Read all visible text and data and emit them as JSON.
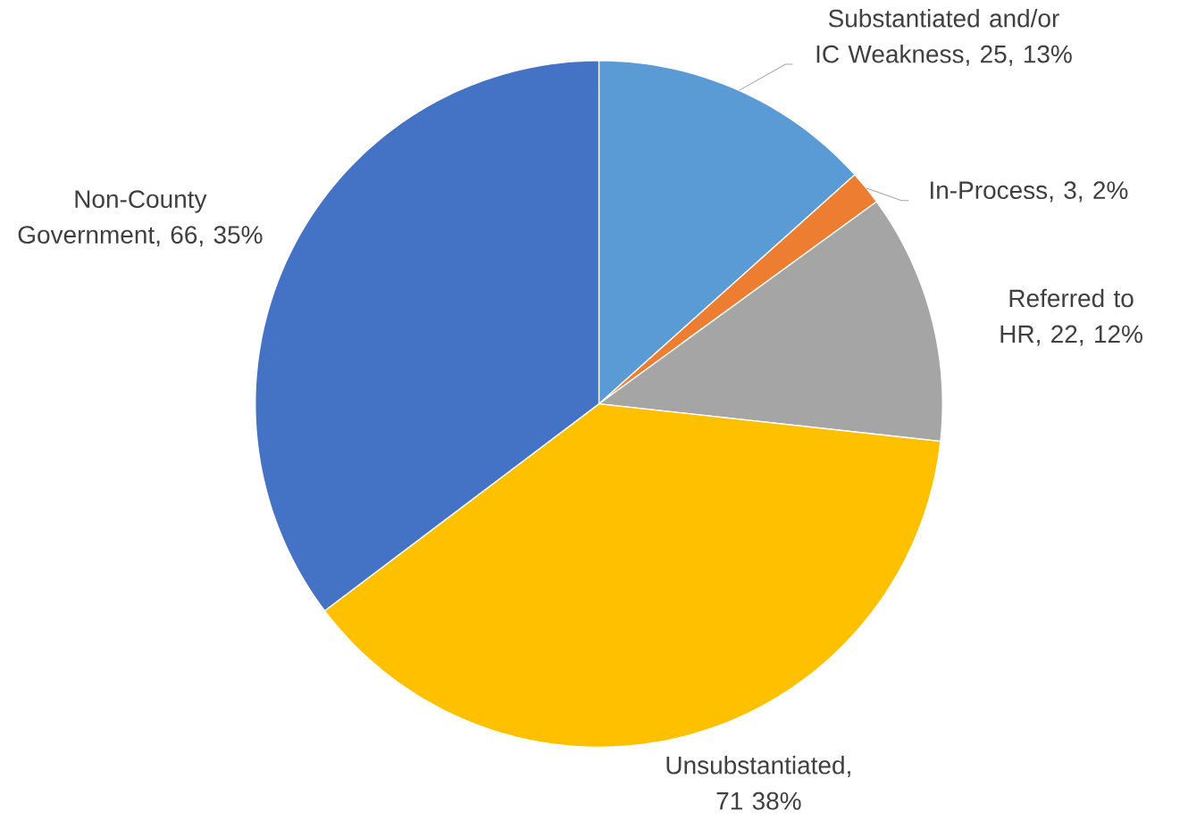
{
  "chart_data": {
    "type": "pie",
    "categories": [
      "Substantiated and/or IC Weakness",
      "In-Process",
      "Referred to HR",
      "Unsubstantiated",
      "Non-County Government"
    ],
    "values": [
      25,
      3,
      22,
      71,
      66
    ],
    "colors": [
      "#5b9bd5",
      "#ed7d31",
      "#a5a5a5",
      "#ffc000",
      "#4472c4"
    ],
    "value_labels": [
      ", 25, 13%",
      ", 3, 2%",
      ", 22, 12%",
      ", 71 38%",
      ", 66, 35%"
    ]
  }
}
